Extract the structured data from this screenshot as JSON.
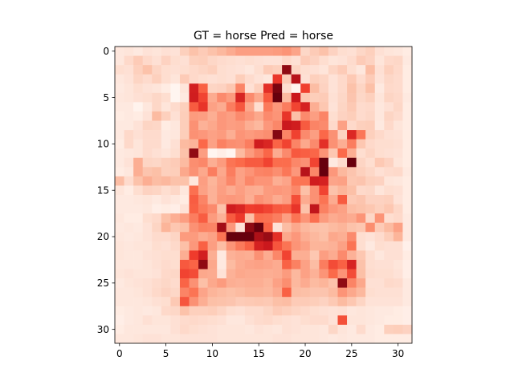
{
  "chart_data": {
    "type": "heatmap",
    "title": "GT = horse Pred = horse",
    "colormap": "Reds",
    "grid": false,
    "rows": 32,
    "cols": 32,
    "x_ticks": [
      0,
      5,
      10,
      15,
      20,
      25,
      30
    ],
    "y_ticks": [
      0,
      5,
      10,
      15,
      20,
      25,
      30
    ],
    "x_tick_labels": [
      "0",
      "5",
      "10",
      "15",
      "20",
      "25",
      "30"
    ],
    "y_tick_labels": [
      "0",
      "5",
      "10",
      "15",
      "20",
      "25",
      "30"
    ],
    "xlim": [
      -0.5,
      31.5
    ],
    "ylim": [
      31.5,
      -0.5
    ],
    "value_range": [
      0,
      1
    ],
    "values": [
      [
        0.06,
        0.07,
        0.05,
        0.08,
        0.07,
        0.09,
        0.08,
        0.16,
        0.22,
        0.18,
        0.22,
        0.26,
        0.3,
        0.34,
        0.34,
        0.34,
        0.34,
        0.35,
        0.37,
        0.32,
        0.13,
        0.18,
        0.22,
        0.15,
        0.1,
        0.09,
        0.13,
        0.16,
        0.09,
        0.07,
        0.06,
        0.04
      ],
      [
        0.06,
        0.12,
        0.18,
        0.12,
        0.09,
        0.15,
        0.1,
        0.09,
        0.16,
        0.17,
        0.13,
        0.11,
        0.1,
        0.09,
        0.1,
        0.09,
        0.08,
        0.08,
        0.12,
        0.09,
        0.18,
        0.15,
        0.1,
        0.07,
        0.08,
        0.11,
        0.18,
        0.15,
        0.07,
        0.12,
        0.13,
        0.05
      ],
      [
        0.1,
        0.09,
        0.16,
        0.22,
        0.14,
        0.1,
        0.09,
        0.1,
        0.12,
        0.14,
        0.16,
        0.1,
        0.09,
        0.08,
        0.06,
        0.1,
        0.18,
        0.16,
        0.96,
        0.14,
        0.1,
        0.09,
        0.07,
        0.14,
        0.18,
        0.1,
        0.06,
        0.24,
        0.09,
        0.16,
        0.12,
        0.04
      ],
      [
        0.06,
        0.08,
        0.14,
        0.11,
        0.16,
        0.1,
        0.07,
        0.18,
        0.12,
        0.1,
        0.09,
        0.1,
        0.09,
        0.17,
        0.11,
        0.08,
        0.06,
        0.77,
        0.18,
        0.92,
        0.09,
        0.16,
        0.14,
        0.08,
        0.12,
        0.19,
        0.11,
        0.18,
        0.08,
        0.13,
        0.11,
        0.04
      ],
      [
        0.05,
        0.07,
        0.1,
        0.08,
        0.07,
        0.04,
        0.0,
        0.07,
        0.87,
        0.55,
        0.14,
        0.15,
        0.2,
        0.42,
        0.09,
        0.16,
        0.8,
        0.98,
        0.1,
        0.0,
        0.73,
        0.24,
        0.15,
        0.08,
        0.12,
        0.22,
        0.14,
        0.23,
        0.05,
        0.12,
        0.11,
        0.04
      ],
      [
        0.06,
        0.07,
        0.09,
        0.1,
        0.13,
        0.1,
        0.0,
        0.05,
        0.88,
        0.7,
        0.3,
        0.4,
        0.35,
        0.85,
        0.4,
        0.31,
        0.59,
        1.0,
        0.25,
        0.9,
        0.2,
        0.17,
        0.18,
        0.09,
        0.13,
        0.21,
        0.13,
        0.16,
        0.07,
        0.14,
        0.12,
        0.05
      ],
      [
        0.05,
        0.05,
        0.01,
        0.06,
        0.13,
        0.07,
        0.11,
        0.16,
        0.58,
        0.78,
        0.33,
        0.3,
        0.44,
        0.6,
        0.31,
        0.1,
        0.45,
        0.36,
        0.44,
        0.7,
        0.86,
        0.29,
        0.2,
        0.08,
        0.14,
        0.19,
        0.11,
        0.12,
        0.06,
        0.09,
        0.13,
        0.04
      ],
      [
        0.04,
        0.05,
        0.04,
        0.08,
        0.25,
        0.16,
        0.09,
        0.17,
        0.35,
        0.34,
        0.29,
        0.36,
        0.34,
        0.4,
        0.36,
        0.31,
        0.4,
        0.37,
        0.78,
        0.23,
        0.4,
        0.34,
        0.42,
        0.1,
        0.15,
        0.17,
        0.11,
        0.13,
        0.06,
        0.14,
        0.11,
        0.04
      ],
      [
        0.05,
        0.05,
        0.08,
        0.14,
        0.13,
        0.04,
        0.06,
        0.17,
        0.38,
        0.28,
        0.31,
        0.36,
        0.34,
        0.35,
        0.29,
        0.26,
        0.36,
        0.41,
        0.9,
        0.88,
        0.58,
        0.42,
        0.4,
        0.12,
        0.33,
        0.12,
        0.16,
        0.17,
        0.05,
        0.12,
        0.07,
        0.04
      ],
      [
        0.05,
        0.12,
        0.09,
        0.11,
        0.11,
        0.05,
        0.06,
        0.17,
        0.38,
        0.36,
        0.33,
        0.35,
        0.29,
        0.37,
        0.35,
        0.37,
        0.39,
        0.97,
        0.42,
        0.72,
        0.4,
        0.34,
        0.51,
        0.38,
        0.15,
        0.83,
        0.46,
        0.16,
        0.12,
        0.09,
        0.08,
        0.04
      ],
      [
        0.04,
        0.12,
        0.07,
        0.11,
        0.11,
        0.05,
        0.09,
        0.25,
        0.27,
        0.51,
        0.33,
        0.43,
        0.39,
        0.38,
        0.44,
        0.88,
        0.84,
        0.53,
        0.71,
        0.42,
        0.31,
        0.4,
        0.8,
        0.38,
        0.29,
        0.44,
        0.2,
        0.12,
        0.1,
        0.1,
        0.09,
        0.04
      ],
      [
        0.05,
        0.06,
        0.07,
        0.11,
        0.09,
        0.07,
        0.1,
        0.22,
        0.96,
        0.34,
        0.0,
        0.03,
        0.0,
        0.25,
        0.35,
        0.42,
        0.52,
        0.3,
        0.4,
        0.59,
        0.56,
        0.52,
        0.37,
        0.2,
        0.5,
        0.29,
        0.1,
        0.14,
        0.1,
        0.09,
        0.08,
        0.04
      ],
      [
        0.05,
        0.08,
        0.29,
        0.14,
        0.13,
        0.16,
        0.18,
        0.25,
        0.39,
        0.41,
        0.29,
        0.35,
        0.47,
        0.5,
        0.58,
        0.58,
        0.71,
        0.49,
        0.49,
        0.41,
        0.38,
        0.7,
        1.0,
        0.05,
        0.11,
        1.0,
        0.14,
        0.1,
        0.19,
        0.15,
        0.07,
        0.04
      ],
      [
        0.04,
        0.06,
        0.29,
        0.21,
        0.23,
        0.16,
        0.17,
        0.31,
        0.38,
        0.31,
        0.44,
        0.31,
        0.44,
        0.33,
        0.37,
        0.42,
        0.43,
        0.39,
        0.46,
        0.36,
        0.92,
        0.41,
        1.0,
        0.36,
        0.26,
        0.21,
        0.16,
        0.13,
        0.09,
        0.11,
        0.12,
        0.05
      ],
      [
        0.24,
        0.11,
        0.22,
        0.29,
        0.24,
        0.26,
        0.22,
        0.22,
        0.06,
        0.34,
        0.27,
        0.33,
        0.41,
        0.33,
        0.41,
        0.37,
        0.37,
        0.29,
        0.32,
        0.47,
        0.47,
        0.88,
        0.86,
        0.32,
        0.33,
        0.2,
        0.21,
        0.16,
        0.15,
        0.07,
        0.06,
        0.04
      ],
      [
        0.07,
        0.04,
        0.1,
        0.15,
        0.14,
        0.1,
        0.13,
        0.06,
        0.48,
        0.33,
        0.28,
        0.34,
        0.3,
        0.34,
        0.3,
        0.29,
        0.35,
        0.36,
        0.35,
        0.41,
        0.23,
        0.38,
        0.7,
        0.22,
        0.27,
        0.23,
        0.12,
        0.13,
        0.07,
        0.1,
        0.09,
        0.04
      ],
      [
        0.05,
        0.05,
        0.06,
        0.07,
        0.05,
        0.08,
        0.06,
        0.04,
        0.57,
        0.42,
        0.28,
        0.35,
        0.36,
        0.35,
        0.29,
        0.38,
        0.35,
        0.3,
        0.34,
        0.65,
        0.3,
        0.38,
        0.47,
        0.3,
        0.58,
        0.19,
        0.21,
        0.15,
        0.15,
        0.16,
        0.08,
        0.04
      ],
      [
        0.05,
        0.05,
        0.05,
        0.06,
        0.03,
        0.04,
        0.03,
        0.08,
        0.55,
        0.45,
        0.4,
        0.22,
        0.88,
        0.84,
        0.74,
        0.76,
        0.7,
        0.59,
        0.56,
        0.78,
        0.22,
        0.91,
        0.43,
        0.36,
        0.33,
        0.24,
        0.22,
        0.2,
        0.16,
        0.2,
        0.13,
        0.04
      ],
      [
        0.06,
        0.04,
        0.04,
        0.1,
        0.12,
        0.23,
        0.29,
        0.34,
        0.44,
        0.57,
        0.35,
        0.28,
        0.58,
        0.76,
        0.23,
        0.49,
        0.48,
        0.44,
        0.34,
        0.47,
        0.37,
        0.48,
        0.35,
        0.3,
        0.32,
        0.3,
        0.37,
        0.13,
        0.37,
        0.1,
        0.12,
        0.05
      ],
      [
        0.05,
        0.06,
        0.05,
        0.08,
        0.14,
        0.27,
        0.2,
        0.23,
        0.38,
        0.43,
        0.42,
        0.94,
        0.36,
        0.08,
        0.96,
        1.0,
        0.54,
        0.08,
        0.24,
        0.31,
        0.26,
        0.23,
        0.22,
        0.25,
        0.27,
        0.22,
        0.2,
        0.39,
        0.18,
        0.25,
        0.33,
        0.05
      ],
      [
        0.06,
        0.05,
        0.06,
        0.08,
        0.11,
        0.11,
        0.14,
        0.35,
        0.35,
        0.3,
        0.33,
        0.47,
        1.0,
        1.0,
        1.0,
        0.93,
        0.95,
        0.8,
        0.31,
        0.36,
        0.29,
        0.26,
        0.23,
        0.31,
        0.29,
        0.4,
        0.1,
        0.08,
        0.11,
        0.17,
        0.27,
        0.05
      ],
      [
        0.07,
        0.06,
        0.07,
        0.07,
        0.1,
        0.09,
        0.12,
        0.23,
        0.36,
        0.55,
        0.34,
        0.24,
        0.37,
        0.45,
        0.54,
        0.86,
        0.9,
        0.61,
        0.47,
        0.37,
        0.33,
        0.27,
        0.27,
        0.28,
        0.33,
        0.47,
        0.1,
        0.05,
        0.1,
        0.09,
        0.09,
        0.02
      ],
      [
        0.07,
        0.06,
        0.06,
        0.08,
        0.09,
        0.1,
        0.1,
        0.29,
        0.75,
        0.87,
        0.29,
        0.05,
        0.28,
        0.3,
        0.29,
        0.38,
        0.3,
        0.41,
        0.71,
        0.29,
        0.29,
        0.2,
        0.34,
        0.3,
        0.4,
        0.28,
        0.2,
        0.1,
        0.06,
        0.09,
        0.09,
        0.04
      ],
      [
        0.06,
        0.06,
        0.06,
        0.07,
        0.09,
        0.11,
        0.1,
        0.59,
        0.53,
        0.96,
        0.31,
        0.05,
        0.25,
        0.3,
        0.32,
        0.33,
        0.32,
        0.3,
        0.54,
        0.43,
        0.33,
        0.24,
        0.44,
        0.66,
        0.55,
        0.85,
        0.22,
        0.1,
        0.09,
        0.09,
        0.07,
        0.03
      ],
      [
        0.07,
        0.08,
        0.07,
        0.07,
        0.08,
        0.12,
        0.13,
        0.71,
        0.66,
        0.31,
        0.3,
        0.08,
        0.28,
        0.31,
        0.3,
        0.3,
        0.29,
        0.3,
        0.35,
        0.26,
        0.33,
        0.28,
        0.37,
        0.5,
        0.37,
        0.66,
        0.23,
        0.11,
        0.1,
        0.1,
        0.08,
        0.03
      ],
      [
        0.05,
        0.07,
        0.08,
        0.09,
        0.11,
        0.13,
        0.11,
        0.53,
        0.38,
        0.23,
        0.31,
        0.35,
        0.29,
        0.28,
        0.29,
        0.29,
        0.27,
        0.33,
        0.39,
        0.26,
        0.3,
        0.25,
        0.27,
        0.22,
        0.96,
        0.42,
        0.31,
        0.09,
        0.09,
        0.12,
        0.11,
        0.05
      ],
      [
        0.06,
        0.06,
        0.07,
        0.09,
        0.12,
        0.15,
        0.13,
        0.42,
        0.47,
        0.32,
        0.27,
        0.25,
        0.23,
        0.25,
        0.27,
        0.27,
        0.26,
        0.3,
        0.55,
        0.24,
        0.23,
        0.21,
        0.21,
        0.25,
        0.37,
        0.31,
        0.26,
        0.1,
        0.09,
        0.09,
        0.09,
        0.05
      ],
      [
        0.06,
        0.06,
        0.06,
        0.07,
        0.09,
        0.1,
        0.19,
        0.61,
        0.38,
        0.29,
        0.23,
        0.22,
        0.21,
        0.18,
        0.19,
        0.2,
        0.19,
        0.23,
        0.24,
        0.18,
        0.18,
        0.17,
        0.15,
        0.19,
        0.25,
        0.2,
        0.14,
        0.08,
        0.08,
        0.08,
        0.08,
        0.05
      ],
      [
        0.04,
        0.05,
        0.06,
        0.05,
        0.06,
        0.12,
        0.13,
        0.22,
        0.16,
        0.16,
        0.17,
        0.14,
        0.1,
        0.09,
        0.11,
        0.11,
        0.14,
        0.18,
        0.16,
        0.14,
        0.12,
        0.1,
        0.09,
        0.08,
        0.09,
        0.06,
        0.07,
        0.06,
        0.05,
        0.05,
        0.04,
        0.03
      ],
      [
        0.03,
        0.05,
        0.06,
        0.09,
        0.07,
        0.07,
        0.09,
        0.11,
        0.12,
        0.11,
        0.1,
        0.09,
        0.06,
        0.06,
        0.09,
        0.11,
        0.12,
        0.1,
        0.09,
        0.08,
        0.1,
        0.11,
        0.11,
        0.08,
        0.64,
        0.07,
        0.07,
        0.06,
        0.05,
        0.04,
        0.04,
        0.03
      ],
      [
        0.04,
        0.06,
        0.06,
        0.06,
        0.06,
        0.06,
        0.09,
        0.12,
        0.1,
        0.09,
        0.08,
        0.07,
        0.07,
        0.07,
        0.06,
        0.08,
        0.07,
        0.06,
        0.09,
        0.08,
        0.07,
        0.07,
        0.06,
        0.13,
        0.07,
        0.05,
        0.11,
        0.05,
        0.04,
        0.16,
        0.17,
        0.15
      ],
      [
        0.06,
        0.06,
        0.07,
        0.08,
        0.08,
        0.07,
        0.07,
        0.08,
        0.08,
        0.08,
        0.08,
        0.07,
        0.07,
        0.07,
        0.07,
        0.07,
        0.07,
        0.08,
        0.08,
        0.07,
        0.07,
        0.07,
        0.06,
        0.05,
        0.06,
        0.05,
        0.05,
        0.05,
        0.04,
        0.04,
        0.04,
        0.04
      ]
    ]
  }
}
